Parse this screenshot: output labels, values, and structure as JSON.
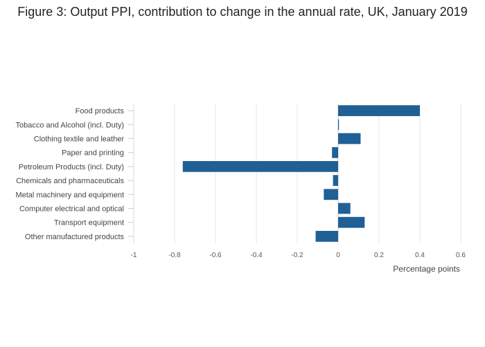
{
  "chart_data": {
    "type": "bar",
    "orientation": "horizontal",
    "title": "Figure 3: Output PPI, contribution to change in the annual rate, UK, January 2019",
    "xlabel": "Percentage points",
    "ylabel": "",
    "categories": [
      "Food products",
      "Tobacco and Alcohol (incl. Duty)",
      "Clothing textile and leather",
      "Paper and printing",
      "Petroleum Products (incl. Duty)",
      "Chemicals and pharmaceuticals",
      "Metal machinery and equipment",
      "Computer electrical and optical",
      "Transport equipment",
      "Other manufactured products"
    ],
    "values": [
      0.4,
      0.003,
      0.11,
      -0.03,
      -0.76,
      -0.025,
      -0.07,
      0.06,
      0.13,
      -0.11
    ],
    "xlim": [
      -1,
      0.6
    ],
    "xticks": [
      -1,
      -0.8,
      -0.6,
      -0.4,
      -0.2,
      0,
      0.2,
      0.4,
      0.6
    ],
    "xtick_labels": [
      "-1",
      "-0.8",
      "-0.6",
      "-0.4",
      "-0.2",
      "0",
      "0.2",
      "0.4",
      "0.6"
    ],
    "grid": true,
    "legend": "none",
    "bar_color": "#206095"
  }
}
